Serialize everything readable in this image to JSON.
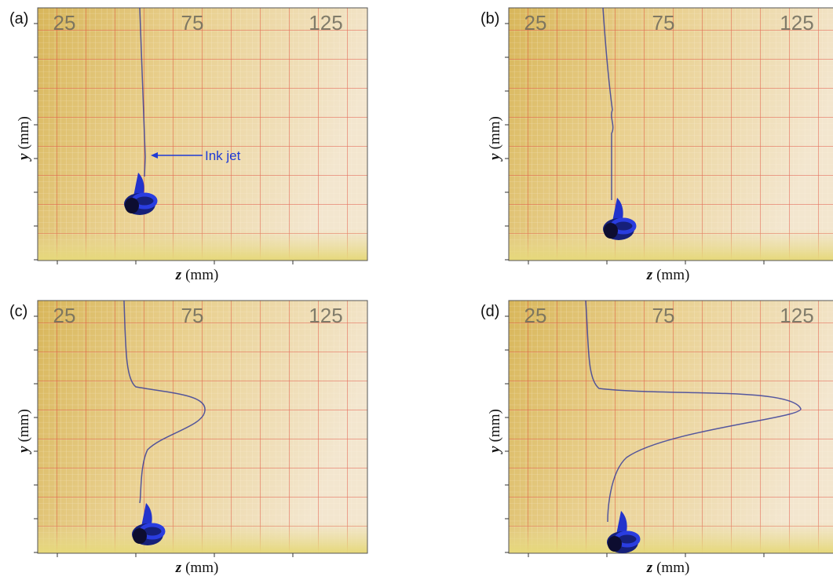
{
  "panels": [
    {
      "label": "(a)",
      "scale": [
        "25",
        "75",
        "125"
      ],
      "x_label": {
        "var": "z",
        "unit": "(mm)"
      },
      "y_label": {
        "var": "y",
        "unit": "(mm)"
      },
      "annotation": "Ink jet"
    },
    {
      "label": "(b)",
      "scale": [
        "25",
        "75",
        "125"
      ],
      "x_label": {
        "var": "z",
        "unit": "(mm)"
      },
      "y_label": {
        "var": "y",
        "unit": "(mm)"
      }
    },
    {
      "label": "(c)",
      "scale": [
        "25",
        "75",
        "125"
      ],
      "x_label": {
        "var": "z",
        "unit": "(mm)"
      },
      "y_label": {
        "var": "y",
        "unit": "(mm)"
      }
    },
    {
      "label": "(d)",
      "scale": [
        "25",
        "75",
        "125"
      ],
      "x_label": {
        "var": "z",
        "unit": "(mm)"
      },
      "y_label": {
        "var": "y",
        "unit": "(mm)"
      }
    }
  ]
}
